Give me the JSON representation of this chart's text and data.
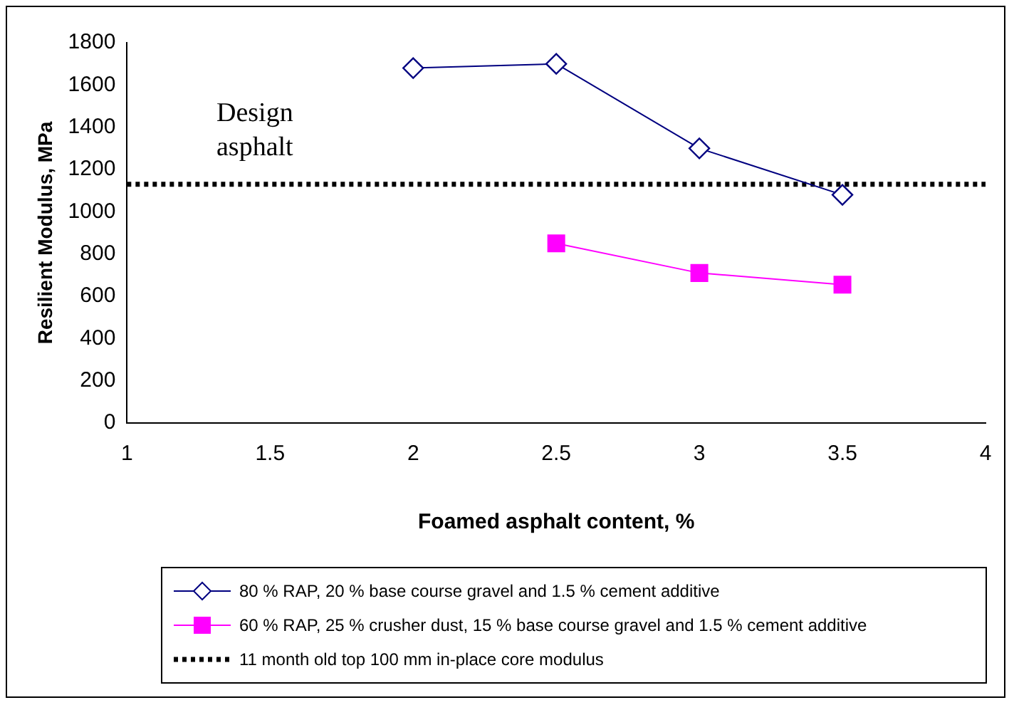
{
  "chart_data": {
    "type": "line",
    "xlabel": "Foamed asphalt content, %",
    "ylabel": "Resilient Modulus, MPa",
    "xlim": [
      1,
      4
    ],
    "xticks": [
      1,
      1.5,
      2,
      2.5,
      3,
      3.5,
      4
    ],
    "ylim": [
      0,
      1800
    ],
    "yticks": [
      0,
      200,
      400,
      600,
      800,
      1000,
      1200,
      1400,
      1600,
      1800
    ],
    "series": [
      {
        "name": "80 % RAP, 20 % base course gravel and 1.5 % cement additive",
        "color": "#000080",
        "marker": "diamond",
        "x": [
          2,
          2.5,
          3,
          3.5
        ],
        "values": [
          1680,
          1700,
          1300,
          1080
        ]
      },
      {
        "name": "60 % RAP, 25 % crusher dust, 15 % base course gravel and 1.5 % cement additive",
        "color": "#ff00ff",
        "marker": "square",
        "x": [
          2.5,
          3,
          3.5
        ],
        "values": [
          850,
          710,
          655
        ]
      }
    ],
    "ref_lines": [
      {
        "axis": "y",
        "value": 1130,
        "label": "11 month old top 100 mm in-place core modulus",
        "color": "#000000",
        "line_style": "dotted"
      }
    ],
    "annotations": [
      "Design asphalt"
    ],
    "grid": false,
    "legend": "bottom"
  }
}
